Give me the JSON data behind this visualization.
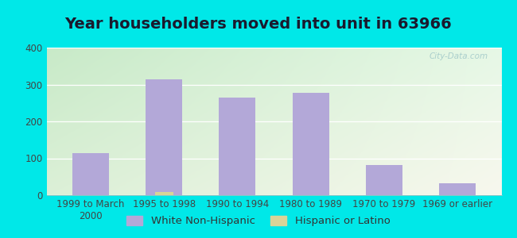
{
  "title": "Year householders moved into unit in 63966",
  "categories": [
    "1999 to March\n2000",
    "1995 to 1998",
    "1990 to 1994",
    "1980 to 1989",
    "1970 to 1979",
    "1969 or earlier"
  ],
  "white_non_hispanic": [
    115,
    315,
    265,
    277,
    82,
    33
  ],
  "hispanic_or_latino": [
    0,
    8,
    0,
    0,
    0,
    0
  ],
  "bar_color_white": "#b3a8d8",
  "bar_color_hispanic": "#d8d498",
  "background_outer": "#00e8e8",
  "background_plot_topleft": "#c8eac8",
  "background_plot_right": "#f0f8f0",
  "background_plot_bottom": "#f8f8ee",
  "ylim": [
    0,
    400
  ],
  "yticks": [
    0,
    100,
    200,
    300,
    400
  ],
  "legend_white_label": "White Non-Hispanic",
  "legend_hispanic_label": "Hispanic or Latino",
  "title_fontsize": 14,
  "tick_fontsize": 8.5,
  "legend_fontsize": 9.5,
  "bar_width": 0.5,
  "watermark": "City-Data.com"
}
